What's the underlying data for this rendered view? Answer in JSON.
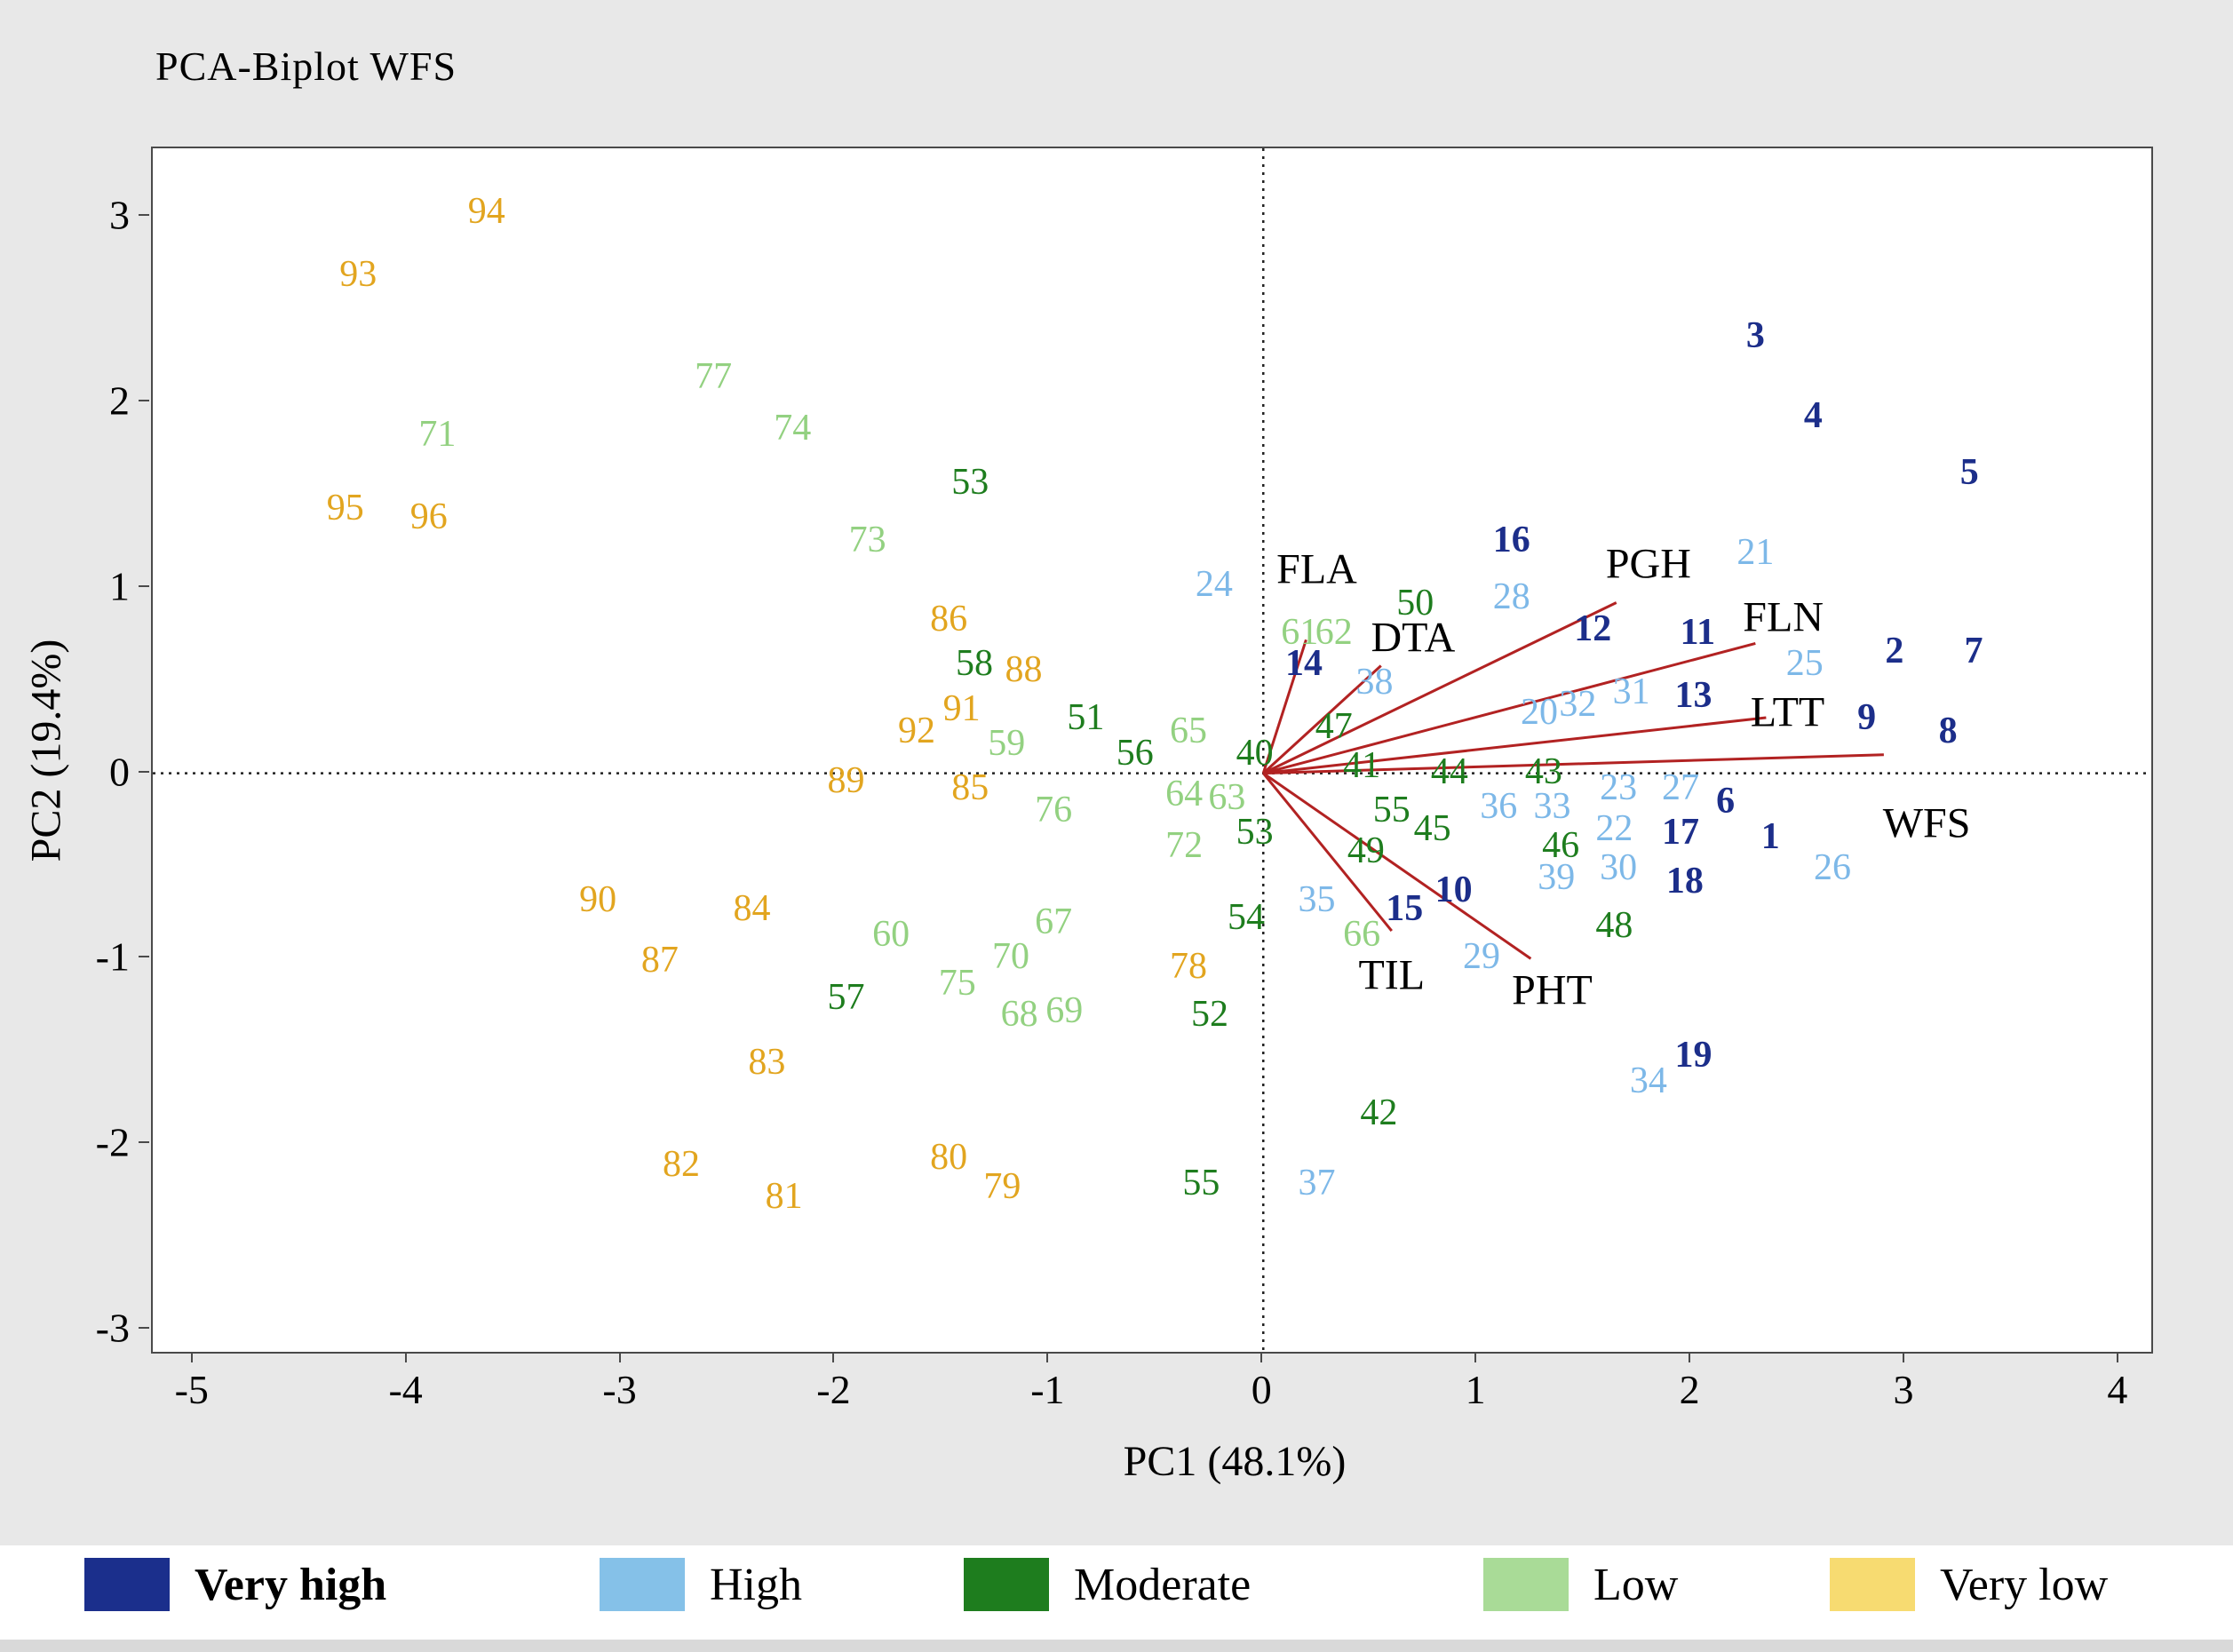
{
  "chart_data": {
    "type": "scatter",
    "title": "PCA-Biplot WFS",
    "xlabel": "PC1 (48.1%)",
    "ylabel": "PC2 (19.4%)",
    "xlim": [
      -5.19,
      4.15
    ],
    "ylim": [
      -3.12,
      3.37
    ],
    "xticks": [
      -5,
      -4,
      -3,
      -2,
      -1,
      0,
      1,
      2,
      3,
      4
    ],
    "yticks": [
      -3,
      -2,
      -1,
      0,
      1,
      2,
      3
    ],
    "grid": "dotted lines at x=0 and y=0 only",
    "vector_color": "#b22222",
    "groups": [
      {
        "name": "Very high",
        "color": "#1c2e8a",
        "bold": true,
        "points": [
          {
            "l": "1",
            "x": 2.37,
            "y": -0.34
          },
          {
            "l": "2",
            "x": 2.95,
            "y": 0.66
          },
          {
            "l": "3",
            "x": 2.3,
            "y": 2.36
          },
          {
            "l": "4",
            "x": 2.57,
            "y": 1.93
          },
          {
            "l": "5",
            "x": 3.3,
            "y": 1.62
          },
          {
            "l": "6",
            "x": 2.16,
            "y": -0.15
          },
          {
            "l": "7",
            "x": 3.32,
            "y": 0.66
          },
          {
            "l": "8",
            "x": 3.2,
            "y": 0.23
          },
          {
            "l": "9",
            "x": 2.82,
            "y": 0.3
          },
          {
            "l": "10",
            "x": 0.89,
            "y": -0.63
          },
          {
            "l": "11",
            "x": 2.03,
            "y": 0.76
          },
          {
            "l": "12",
            "x": 1.54,
            "y": 0.78
          },
          {
            "l": "13",
            "x": 2.01,
            "y": 0.42
          },
          {
            "l": "14",
            "x": 0.19,
            "y": 0.59
          },
          {
            "l": "15",
            "x": 0.66,
            "y": -0.73
          },
          {
            "l": "16",
            "x": 1.16,
            "y": 1.26
          },
          {
            "l": "17",
            "x": 1.95,
            "y": -0.32
          },
          {
            "l": "18",
            "x": 1.97,
            "y": -0.58
          },
          {
            "l": "19",
            "x": 2.01,
            "y": -1.52
          }
        ]
      },
      {
        "name": "High",
        "color": "#7db8e8",
        "bold": false,
        "points": [
          {
            "l": "20",
            "x": 1.29,
            "y": 0.33
          },
          {
            "l": "21",
            "x": 2.3,
            "y": 1.19
          },
          {
            "l": "22",
            "x": 1.64,
            "y": -0.3
          },
          {
            "l": "23",
            "x": 1.66,
            "y": -0.08
          },
          {
            "l": "24",
            "x": -0.23,
            "y": 1.02
          },
          {
            "l": "25",
            "x": 2.53,
            "y": 0.59
          },
          {
            "l": "26",
            "x": 2.66,
            "y": -0.51
          },
          {
            "l": "27",
            "x": 1.95,
            "y": -0.08
          },
          {
            "l": "28",
            "x": 1.16,
            "y": 0.95
          },
          {
            "l": "29",
            "x": 1.02,
            "y": -0.99
          },
          {
            "l": "30",
            "x": 1.66,
            "y": -0.51
          },
          {
            "l": "31",
            "x": 1.72,
            "y": 0.44
          },
          {
            "l": "32",
            "x": 1.47,
            "y": 0.37
          },
          {
            "l": "33",
            "x": 1.35,
            "y": -0.18
          },
          {
            "l": "34",
            "x": 1.8,
            "y": -1.66
          },
          {
            "l": "35",
            "x": 0.25,
            "y": -0.68
          },
          {
            "l": "36",
            "x": 1.1,
            "y": -0.18
          },
          {
            "l": "37",
            "x": 0.25,
            "y": -2.21
          },
          {
            "l": "38",
            "x": 0.52,
            "y": 0.49
          },
          {
            "l": "39",
            "x": 1.37,
            "y": -0.56
          }
        ]
      },
      {
        "name": "Moderate",
        "color": "#1e7d1e",
        "bold": false,
        "points": [
          {
            "l": "40",
            "x": -0.04,
            "y": 0.11
          },
          {
            "l": "41",
            "x": 0.46,
            "y": 0.04
          },
          {
            "l": "42",
            "x": 0.54,
            "y": -1.83
          },
          {
            "l": "43",
            "x": 1.31,
            "y": 0.01
          },
          {
            "l": "44",
            "x": 0.87,
            "y": 0.01
          },
          {
            "l": "45",
            "x": 0.79,
            "y": -0.3
          },
          {
            "l": "46",
            "x": 1.39,
            "y": -0.39
          },
          {
            "l": "47",
            "x": 0.33,
            "y": 0.25
          },
          {
            "l": "48",
            "x": 1.64,
            "y": -0.82
          },
          {
            "l": "49",
            "x": 0.48,
            "y": -0.42
          },
          {
            "l": "50",
            "x": 0.71,
            "y": 0.92
          },
          {
            "l": "51",
            "x": -0.83,
            "y": 0.3
          },
          {
            "l": "52",
            "x": -0.25,
            "y": -1.3
          },
          {
            "l": "53",
            "x": -1.37,
            "y": 1.57
          },
          {
            "l": "53",
            "x": -0.04,
            "y": -0.32
          },
          {
            "l": "54",
            "x": -0.08,
            "y": -0.78
          },
          {
            "l": "55",
            "x": 0.6,
            "y": -0.2
          },
          {
            "l": "55",
            "x": -0.29,
            "y": -2.21
          },
          {
            "l": "56",
            "x": -0.6,
            "y": 0.11
          },
          {
            "l": "57",
            "x": -1.95,
            "y": -1.21
          },
          {
            "l": "58",
            "x": -1.35,
            "y": 0.59
          }
        ]
      },
      {
        "name": "Low",
        "color": "#93d181",
        "bold": false,
        "points": [
          {
            "l": "59",
            "x": -1.2,
            "y": 0.16
          },
          {
            "l": "60",
            "x": -1.74,
            "y": -0.87
          },
          {
            "l": "61",
            "x": 0.17,
            "y": 0.76
          },
          {
            "l": "62",
            "x": 0.33,
            "y": 0.76
          },
          {
            "l": "63",
            "x": -0.17,
            "y": -0.13
          },
          {
            "l": "64",
            "x": -0.37,
            "y": -0.11
          },
          {
            "l": "65",
            "x": -0.35,
            "y": 0.23
          },
          {
            "l": "66",
            "x": 0.46,
            "y": -0.87
          },
          {
            "l": "67",
            "x": -0.98,
            "y": -0.8
          },
          {
            "l": "68",
            "x": -1.14,
            "y": -1.3
          },
          {
            "l": "69",
            "x": -0.93,
            "y": -1.28
          },
          {
            "l": "70",
            "x": -1.18,
            "y": -0.99
          },
          {
            "l": "71",
            "x": -3.86,
            "y": 1.83
          },
          {
            "l": "72",
            "x": -0.37,
            "y": -0.39
          },
          {
            "l": "73",
            "x": -1.85,
            "y": 1.26
          },
          {
            "l": "74",
            "x": -2.2,
            "y": 1.86
          },
          {
            "l": "75",
            "x": -1.43,
            "y": -1.13
          },
          {
            "l": "76",
            "x": -0.98,
            "y": -0.2
          },
          {
            "l": "77",
            "x": -2.57,
            "y": 2.14
          }
        ]
      },
      {
        "name": "Very low",
        "color": "#e2a51f",
        "bold": false,
        "points": [
          {
            "l": "78",
            "x": -0.35,
            "y": -1.04
          },
          {
            "l": "79",
            "x": -1.22,
            "y": -2.23
          },
          {
            "l": "80",
            "x": -1.47,
            "y": -2.07
          },
          {
            "l": "81",
            "x": -2.24,
            "y": -2.28
          },
          {
            "l": "82",
            "x": -2.72,
            "y": -2.11
          },
          {
            "l": "83",
            "x": -2.32,
            "y": -1.56
          },
          {
            "l": "84",
            "x": -2.39,
            "y": -0.73
          },
          {
            "l": "85",
            "x": -1.37,
            "y": -0.08
          },
          {
            "l": "86",
            "x": -1.47,
            "y": 0.83
          },
          {
            "l": "87",
            "x": -2.82,
            "y": -1.01
          },
          {
            "l": "88",
            "x": -1.12,
            "y": 0.56
          },
          {
            "l": "89",
            "x": -1.95,
            "y": -0.04
          },
          {
            "l": "90",
            "x": -3.11,
            "y": -0.68
          },
          {
            "l": "91",
            "x": -1.41,
            "y": 0.35
          },
          {
            "l": "92",
            "x": -1.62,
            "y": 0.23
          },
          {
            "l": "93",
            "x": -4.23,
            "y": 2.69
          },
          {
            "l": "94",
            "x": -3.63,
            "y": 3.03
          },
          {
            "l": "95",
            "x": -4.29,
            "y": 1.43
          },
          {
            "l": "96",
            "x": -3.9,
            "y": 1.38
          }
        ]
      }
    ],
    "vectors": [
      {
        "label": "FLA",
        "x": 0.2,
        "y": 0.72,
        "lx": 0.25,
        "ly": 1.1
      },
      {
        "label": "DTA",
        "x": 0.55,
        "y": 0.58,
        "lx": 0.7,
        "ly": 0.73
      },
      {
        "label": "PGH",
        "x": 1.65,
        "y": 0.92,
        "lx": 1.8,
        "ly": 1.13
      },
      {
        "label": "FLN",
        "x": 2.3,
        "y": 0.7,
        "lx": 2.43,
        "ly": 0.84
      },
      {
        "label": "LTT",
        "x": 2.35,
        "y": 0.3,
        "lx": 2.45,
        "ly": 0.33
      },
      {
        "label": "WFS",
        "x": 2.9,
        "y": 0.1,
        "lx": 3.1,
        "ly": -0.27
      },
      {
        "label": "TIL",
        "x": 0.6,
        "y": -0.85,
        "lx": 0.6,
        "ly": -1.09
      },
      {
        "label": "PHT",
        "x": 1.25,
        "y": -1.0,
        "lx": 1.35,
        "ly": -1.17
      }
    ]
  },
  "legend": {
    "items": [
      {
        "label": "Very high",
        "color": "#1b2f8c",
        "bold": true
      },
      {
        "label": "High",
        "color": "#85c1e8",
        "bold": false
      },
      {
        "label": "Moderate",
        "color": "#1e7d1e",
        "bold": false
      },
      {
        "label": "Low",
        "color": "#a9db97",
        "bold": false
      },
      {
        "label": "Very low",
        "color": "#f7db71",
        "bold": false
      }
    ]
  }
}
